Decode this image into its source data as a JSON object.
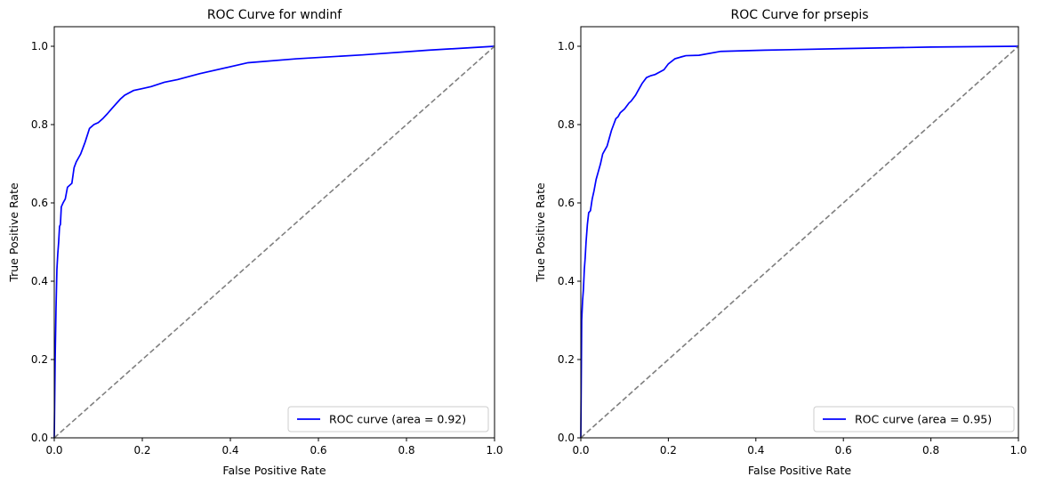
{
  "chart_data": [
    {
      "type": "line",
      "title": "ROC Curve for wndinf",
      "xlabel": "False Positive Rate",
      "ylabel": "True Positive Rate",
      "xlim": [
        0.0,
        1.0
      ],
      "ylim": [
        0.0,
        1.05
      ],
      "xticks": [
        "0.0",
        "0.2",
        "0.4",
        "0.6",
        "0.8",
        "1.0"
      ],
      "yticks": [
        "0.0",
        "0.2",
        "0.4",
        "0.6",
        "0.8",
        "1.0"
      ],
      "grid": false,
      "legend_position": "lower-right",
      "series": [
        {
          "name": "ROC curve (area = 0.92)",
          "color": "#0000ff",
          "style": "solid",
          "x": [
            0.0,
            0.002,
            0.004,
            0.006,
            0.008,
            0.01,
            0.012,
            0.014,
            0.016,
            0.02,
            0.025,
            0.03,
            0.04,
            0.045,
            0.05,
            0.06,
            0.065,
            0.07,
            0.08,
            0.09,
            0.1,
            0.11,
            0.12,
            0.13,
            0.15,
            0.16,
            0.18,
            0.2,
            0.22,
            0.25,
            0.28,
            0.33,
            0.44,
            0.55,
            0.7,
            0.85,
            1.0
          ],
          "y": [
            0.0,
            0.2,
            0.33,
            0.43,
            0.47,
            0.5,
            0.54,
            0.545,
            0.59,
            0.6,
            0.61,
            0.64,
            0.65,
            0.69,
            0.705,
            0.725,
            0.74,
            0.755,
            0.79,
            0.8,
            0.805,
            0.815,
            0.827,
            0.84,
            0.865,
            0.875,
            0.887,
            0.892,
            0.897,
            0.908,
            0.915,
            0.93,
            0.958,
            0.968,
            0.978,
            0.99,
            1.0
          ]
        },
        {
          "color": "#808080",
          "style": "dashed",
          "x": [
            0.0,
            1.0
          ],
          "y": [
            0.0,
            1.0
          ]
        }
      ]
    },
    {
      "type": "line",
      "title": "ROC Curve for prsepis",
      "xlabel": "False Positive Rate",
      "ylabel": "True Positive Rate",
      "xlim": [
        0.0,
        1.0
      ],
      "ylim": [
        0.0,
        1.05
      ],
      "xticks": [
        "0.0",
        "0.2",
        "0.4",
        "0.6",
        "0.8",
        "1.0"
      ],
      "yticks": [
        "0.0",
        "0.2",
        "0.4",
        "0.6",
        "0.8",
        "1.0"
      ],
      "grid": false,
      "legend_position": "lower-right",
      "series": [
        {
          "name": "ROC curve (area = 0.95)",
          "color": "#0000ff",
          "style": "solid",
          "x": [
            0.0,
            0.002,
            0.004,
            0.006,
            0.008,
            0.01,
            0.012,
            0.015,
            0.018,
            0.022,
            0.026,
            0.03,
            0.035,
            0.04,
            0.045,
            0.05,
            0.055,
            0.06,
            0.065,
            0.07,
            0.075,
            0.08,
            0.085,
            0.09,
            0.1,
            0.11,
            0.115,
            0.125,
            0.13,
            0.14,
            0.15,
            0.16,
            0.17,
            0.19,
            0.2,
            0.215,
            0.23,
            0.24,
            0.27,
            0.32,
            0.42,
            0.6,
            0.8,
            1.0
          ],
          "y": [
            0.0,
            0.3,
            0.35,
            0.38,
            0.43,
            0.46,
            0.5,
            0.545,
            0.575,
            0.58,
            0.61,
            0.63,
            0.66,
            0.68,
            0.7,
            0.725,
            0.735,
            0.745,
            0.765,
            0.785,
            0.8,
            0.815,
            0.82,
            0.83,
            0.84,
            0.855,
            0.86,
            0.875,
            0.885,
            0.905,
            0.92,
            0.925,
            0.928,
            0.94,
            0.955,
            0.968,
            0.973,
            0.976,
            0.977,
            0.987,
            0.99,
            0.994,
            0.998,
            1.0
          ]
        },
        {
          "color": "#808080",
          "style": "dashed",
          "x": [
            0.0,
            1.0
          ],
          "y": [
            0.0,
            1.0
          ]
        }
      ]
    }
  ]
}
